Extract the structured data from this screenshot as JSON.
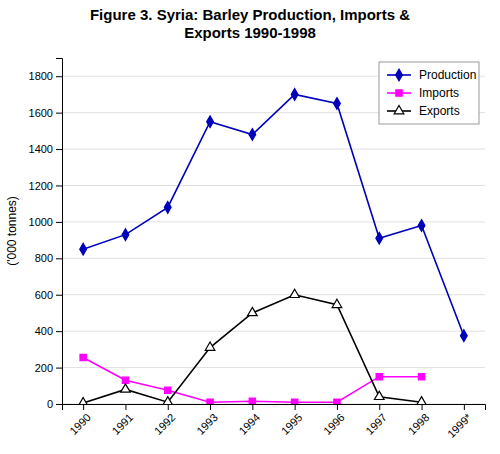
{
  "chart_data": {
    "type": "line",
    "title": "Figure 3. Syria: Barley Production, Imports &\nExports 1990-1998",
    "ylabel": "('000 tonnes)",
    "categories": [
      "1990",
      "1991",
      "1992",
      "1993",
      "1994",
      "1995",
      "1996",
      "1997",
      "1998",
      "1999*"
    ],
    "series": [
      {
        "name": "Production",
        "color": "#0000BB",
        "marker": "diamond",
        "values": [
          850,
          930,
          1080,
          1550,
          1480,
          1700,
          1650,
          910,
          980,
          375
        ]
      },
      {
        "name": "Imports",
        "color": "#FF00FF",
        "marker": "square",
        "values": [
          255,
          130,
          75,
          10,
          15,
          10,
          10,
          150,
          150,
          null
        ]
      },
      {
        "name": "Exports",
        "color": "#000000",
        "marker": "triangle-open",
        "values": [
          5,
          80,
          10,
          310,
          500,
          600,
          545,
          40,
          10,
          null
        ]
      }
    ],
    "ylim": [
      0,
      1900
    ],
    "yticks": [
      0,
      200,
      400,
      600,
      800,
      1000,
      1200,
      1400,
      1600,
      1800
    ],
    "grid": true,
    "legend": "upper right"
  }
}
